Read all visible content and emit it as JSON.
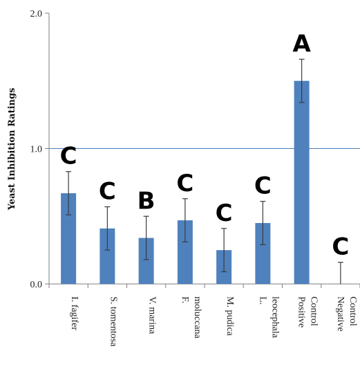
{
  "chart_data": {
    "type": "bar",
    "title": "",
    "xlabel": "",
    "ylabel": "Yeast Inhibition Ratings",
    "ylim": [
      0,
      2.0
    ],
    "yticks": [
      "0.0",
      "1.0",
      "2.0"
    ],
    "gridlines": [
      1.0
    ],
    "categories": [
      [
        "I. fagifer"
      ],
      [
        "S. tomentosa"
      ],
      [
        "V. marina"
      ],
      [
        "F.",
        "moluccana"
      ],
      [
        "M. pudica"
      ],
      [
        "L.",
        "leocephala"
      ],
      [
        "Positive",
        "Control"
      ],
      [
        "Negative",
        "Control"
      ]
    ],
    "values": [
      0.67,
      0.41,
      0.34,
      0.47,
      0.25,
      0.45,
      1.5,
      0.0
    ],
    "error": [
      0.16,
      0.16,
      0.16,
      0.16,
      0.16,
      0.16,
      0.16,
      0.16
    ],
    "letters": [
      "C",
      "C",
      "B",
      "C",
      "C",
      "C",
      "A",
      "C"
    ],
    "bar_color": "#4f81bd",
    "grid_color": "#4a7eba"
  }
}
